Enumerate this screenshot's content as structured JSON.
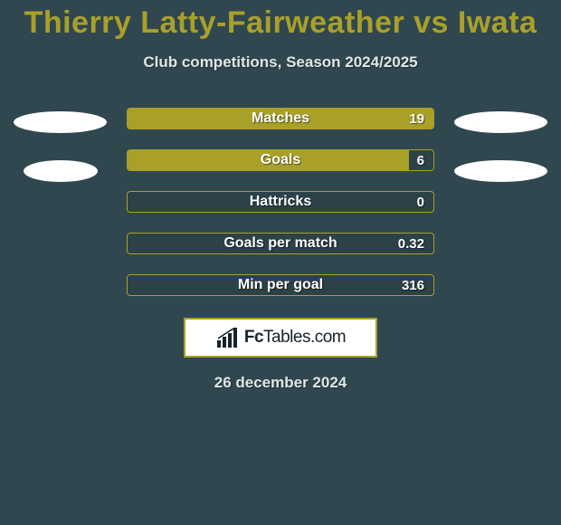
{
  "colors": {
    "page_bg": "#30474f",
    "title": "#a9a02a",
    "subtitle": "#dfe7e6",
    "avatar": "#ffffff",
    "bar_fill": "#a9a02a",
    "bar_track": "#2c4148",
    "bar_border": "#a9a02a",
    "bar_label": "#ffffff",
    "bar_value": "#ffffff",
    "logo_bg": "#ffffff",
    "logo_border": "#a9a02a",
    "logo_text": "#16232b",
    "date": "#dfe7e6"
  },
  "title": "Thierry Latty-Fairweather vs Iwata",
  "subtitle": "Club competitions, Season 2024/2025",
  "bars": [
    {
      "label": "Matches",
      "value": "19",
      "fill_pct": 100
    },
    {
      "label": "Goals",
      "value": "6",
      "fill_pct": 92
    },
    {
      "label": "Hattricks",
      "value": "0",
      "fill_pct": 0
    },
    {
      "label": "Goals per match",
      "value": "0.32",
      "fill_pct": 0
    },
    {
      "label": "Min per goal",
      "value": "316",
      "fill_pct": 0
    }
  ],
  "logo": {
    "brand_a": "Fc",
    "brand_b": "Tables",
    "suffix": ".com"
  },
  "date": "26 december 2024"
}
